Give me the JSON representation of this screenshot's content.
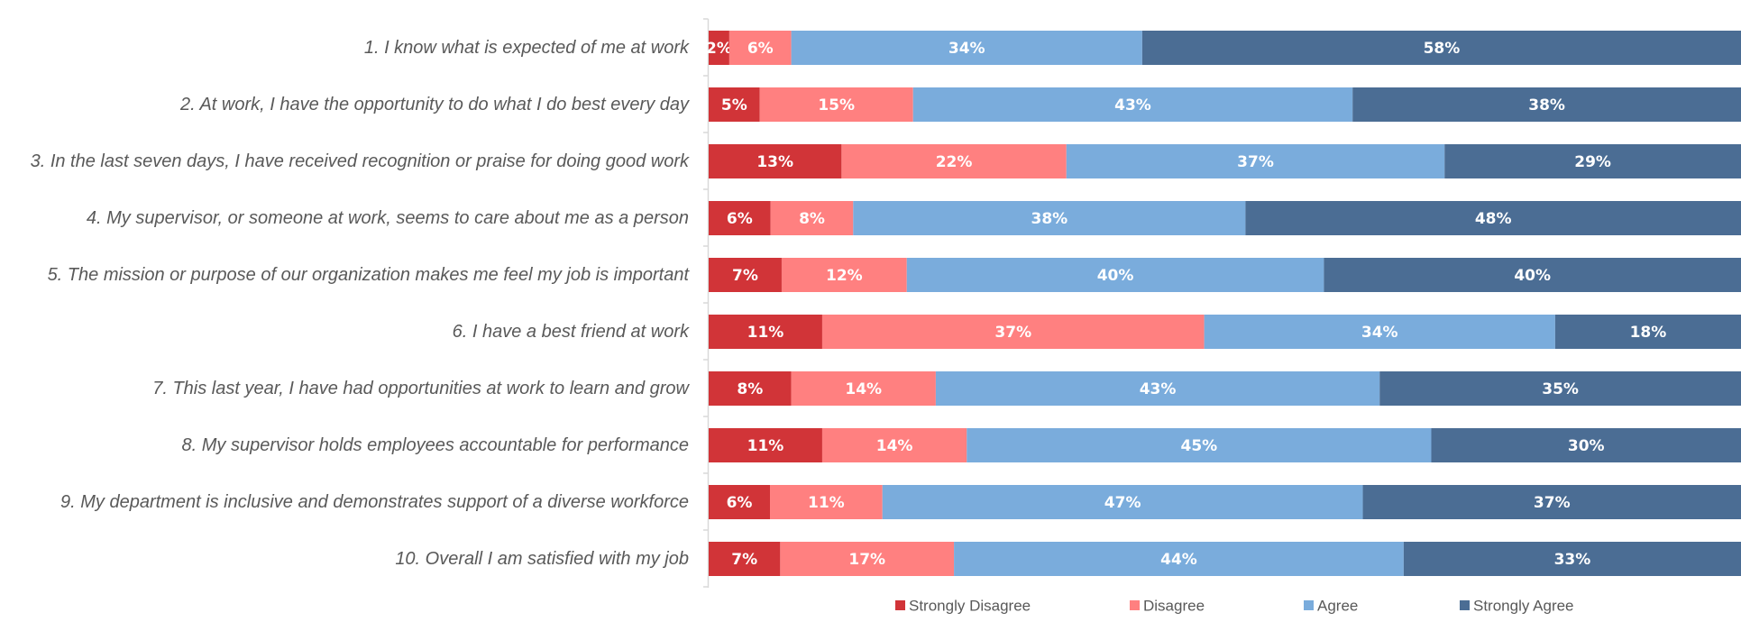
{
  "chart_data": {
    "type": "bar",
    "orientation": "horizontal",
    "stacked": "100%",
    "title": "",
    "categories": [
      "1. I know what is expected of me at work",
      "2. At work, I have the opportunity to do what I do best every day",
      "3. In the last seven days, I have received recognition or praise for doing good work",
      "4. My supervisor, or someone at work, seems to care about me as a person",
      "5. The mission or purpose of our organization makes me feel my job is important",
      "6. I have a best friend at work",
      "7. This last year, I have had opportunities at work to learn and grow",
      "8. My supervisor holds employees accountable for performance",
      "9. My department is inclusive and demonstrates support of a diverse workforce",
      "10. Overall I am satisfied with my job"
    ],
    "series": [
      {
        "name": "Strongly Disagree",
        "color": "#d13438",
        "values": [
          2,
          5,
          13,
          6,
          7,
          11,
          8,
          11,
          6,
          7
        ]
      },
      {
        "name": "Disagree",
        "color": "#ff8080",
        "values": [
          6,
          15,
          22,
          8,
          12,
          37,
          14,
          14,
          11,
          17
        ]
      },
      {
        "name": "Agree",
        "color": "#7aacdc",
        "values": [
          34,
          43,
          37,
          38,
          40,
          34,
          43,
          45,
          47,
          44
        ]
      },
      {
        "name": "Strongly Agree",
        "color": "#4b6d94",
        "values": [
          58,
          38,
          29,
          48,
          40,
          18,
          35,
          30,
          37,
          33
        ]
      }
    ],
    "value_suffix": "%",
    "legend_position": "bottom"
  }
}
